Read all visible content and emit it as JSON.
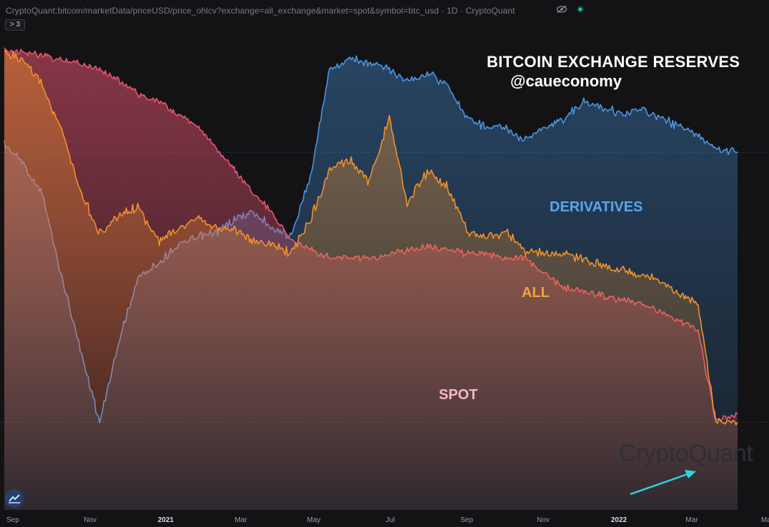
{
  "header": {
    "url_text": "CryptoQuant:bitcoin/marketData/priceUSD/price_ohlcv?exchange=all_exchange&market=spot&symbol=btc_usd · 1D · CryptoQuant",
    "collapse_label": "> 3",
    "eye_icon": "eye-hidden-icon",
    "status_icon": "live-dot-icon"
  },
  "annotations": {
    "title": "BITCOIN EXCHANGE RESERVES",
    "handle": "@caueconomy",
    "derivatives": "DERIVATIVES",
    "all": "ALL",
    "spot": "SPOT",
    "watermark": "CryptoQuant"
  },
  "colors": {
    "derivatives": "#4a96e0",
    "all": "#f0912c",
    "spot": "#e8546f",
    "background": "#131316",
    "arrow": "#2ad4e6"
  },
  "chart_data": {
    "type": "area",
    "x_ticks": [
      {
        "label": "Sep",
        "bold": false
      },
      {
        "label": "Nov",
        "bold": false
      },
      {
        "label": "2021",
        "bold": true
      },
      {
        "label": "Mar",
        "bold": false
      },
      {
        "label": "May",
        "bold": false
      },
      {
        "label": "Jul",
        "bold": false
      },
      {
        "label": "Sep",
        "bold": false
      },
      {
        "label": "Nov",
        "bold": false
      },
      {
        "label": "2022",
        "bold": true
      },
      {
        "label": "Mar",
        "bold": false
      },
      {
        "label": "Ma",
        "bold": false
      }
    ],
    "x": [
      "2020-09-01",
      "2020-09-15",
      "2020-10-01",
      "2020-10-15",
      "2020-11-01",
      "2020-11-15",
      "2020-12-01",
      "2020-12-15",
      "2021-01-01",
      "2021-01-15",
      "2021-02-01",
      "2021-02-15",
      "2021-03-01",
      "2021-03-15",
      "2021-04-01",
      "2021-04-15",
      "2021-05-01",
      "2021-05-15",
      "2021-06-01",
      "2021-06-15",
      "2021-07-01",
      "2021-07-15",
      "2021-08-01",
      "2021-08-15",
      "2021-09-01",
      "2021-09-15",
      "2021-10-01",
      "2021-10-15",
      "2021-11-01",
      "2021-11-15",
      "2021-12-01",
      "2021-12-15",
      "2022-01-01",
      "2022-01-15",
      "2022-02-01",
      "2022-02-15",
      "2022-03-01",
      "2022-03-15",
      "2022-04-01"
    ],
    "series": [
      {
        "name": "DERIVATIVES",
        "values": [
          0.78,
          0.74,
          0.66,
          0.48,
          0.28,
          0.12,
          0.32,
          0.46,
          0.5,
          0.54,
          0.56,
          0.57,
          0.6,
          0.62,
          0.58,
          0.56,
          0.72,
          0.96,
          0.98,
          0.97,
          0.96,
          0.93,
          0.95,
          0.92,
          0.84,
          0.82,
          0.82,
          0.79,
          0.82,
          0.84,
          0.88,
          0.87,
          0.85,
          0.86,
          0.84,
          0.82,
          0.8,
          0.77,
          0.76
        ]
      },
      {
        "name": "ALL",
        "values": [
          1.0,
          0.98,
          0.92,
          0.82,
          0.66,
          0.57,
          0.61,
          0.63,
          0.55,
          0.58,
          0.61,
          0.58,
          0.58,
          0.55,
          0.54,
          0.52,
          0.61,
          0.72,
          0.74,
          0.69,
          0.84,
          0.64,
          0.72,
          0.68,
          0.57,
          0.56,
          0.57,
          0.53,
          0.52,
          0.52,
          0.51,
          0.49,
          0.48,
          0.47,
          0.45,
          0.42,
          0.4,
          0.12,
          0.12
        ]
      },
      {
        "name": "SPOT",
        "values": [
          1.0,
          1.0,
          0.99,
          0.98,
          0.97,
          0.96,
          0.93,
          0.9,
          0.88,
          0.85,
          0.82,
          0.77,
          0.72,
          0.67,
          0.61,
          0.55,
          0.53,
          0.51,
          0.51,
          0.51,
          0.52,
          0.53,
          0.54,
          0.53,
          0.52,
          0.52,
          0.51,
          0.51,
          0.47,
          0.44,
          0.43,
          0.42,
          0.41,
          0.4,
          0.38,
          0.36,
          0.34,
          0.12,
          0.14
        ]
      }
    ],
    "ylim": [
      0,
      1
    ],
    "grid": false,
    "legend": "none"
  }
}
